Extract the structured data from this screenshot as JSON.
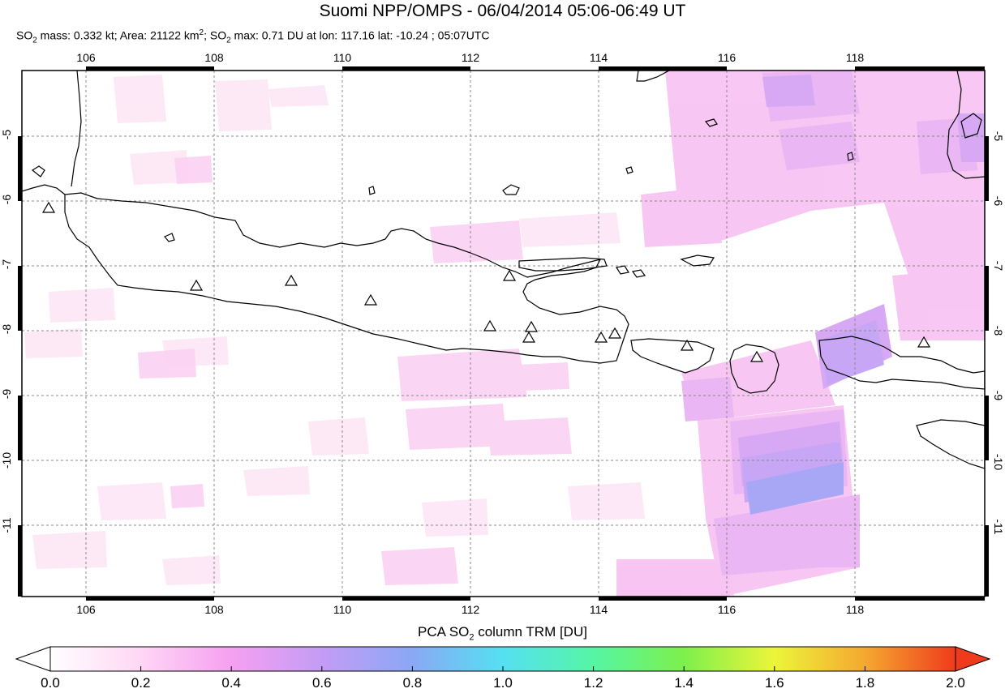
{
  "header": {
    "title": "Suomi NPP/OMPS - 06/04/2014 05:06-06:49 UT",
    "so2_mass_label": "SO",
    "so2_mass_text": " mass: 0.332 kt; Area: 21122 km",
    "area_sup": "2",
    "so2_max_label": "; SO",
    "so2_max_text": " max: 0.71 DU at lon: 117.16 lat: -10.24 ; 05:07UTC",
    "sub2": "2"
  },
  "map": {
    "lon_range": [
      105,
      119.8
    ],
    "lat_range": [
      -12.1,
      -4
    ],
    "lon_ticks": [
      "106",
      "108",
      "110",
      "112",
      "114",
      "116",
      "118"
    ],
    "lat_ticks": [
      "-5",
      "-6",
      "-7",
      "-8",
      "-9",
      "-10",
      "-11"
    ],
    "volcano_marker": "triangle",
    "grid": "dashed"
  },
  "colorbar": {
    "title_prefix": "PCA SO",
    "title_sub": "2",
    "title_suffix": " column TRM [DU]",
    "labels": [
      "0.0",
      "0.2",
      "0.4",
      "0.6",
      "0.8",
      "1.0",
      "1.2",
      "1.4",
      "1.6",
      "1.8",
      "2.0"
    ],
    "colors": [
      "#ffffff",
      "#ffd6f5",
      "#f5a0f0",
      "#c49cf5",
      "#8aa8f5",
      "#55e0f2",
      "#55f5a5",
      "#7df04c",
      "#ecf53a",
      "#f5a830",
      "#ef3b1b"
    ]
  }
}
